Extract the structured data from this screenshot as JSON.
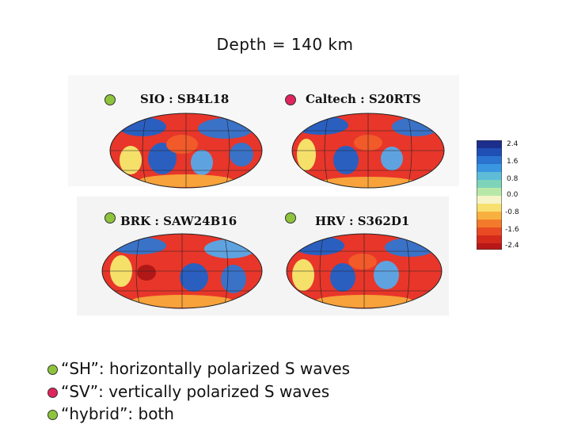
{
  "title": "Depth = 140 km",
  "colors": {
    "green_dot": "#8ec43c",
    "pink_dot": "#e0245e",
    "red": "#e0281c",
    "blue": "#1f4fb4"
  },
  "models": [
    {
      "label": "SIO : SB4L18",
      "dot": "green"
    },
    {
      "label": "Caltech : S20RTS",
      "dot": "pink"
    },
    {
      "label": "BRK : SAW24B16",
      "dot": "green"
    },
    {
      "label": "HRV : S362D1",
      "dot": "green"
    }
  ],
  "colorbar": {
    "ticks": [
      "2.4",
      "1.6",
      "0.8",
      "0.0",
      "-0.8",
      "-1.6",
      "-2.4"
    ]
  },
  "legend": [
    {
      "text": "“SH”: horizontally polarized S waves",
      "dot": "green"
    },
    {
      "text": "“SV”: vertically polarized S waves",
      "dot": "pink"
    },
    {
      "text": "“hybrid”: both",
      "dot": "green"
    }
  ]
}
